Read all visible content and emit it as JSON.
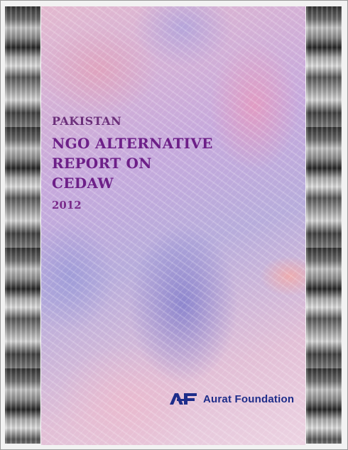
{
  "cover": {
    "kicker": "PAKISTAN",
    "title_lines": [
      "NGO ALTERNATIVE",
      "REPORT ON",
      "CEDAW"
    ],
    "year": "2012"
  },
  "publisher": {
    "name": "Aurat Foundation",
    "logo_icon": "aurat-foundation-logo-icon",
    "logo_color": "#1e2d8a"
  },
  "colors": {
    "title": "#6d1f88",
    "kicker": "#6b2f7a"
  }
}
